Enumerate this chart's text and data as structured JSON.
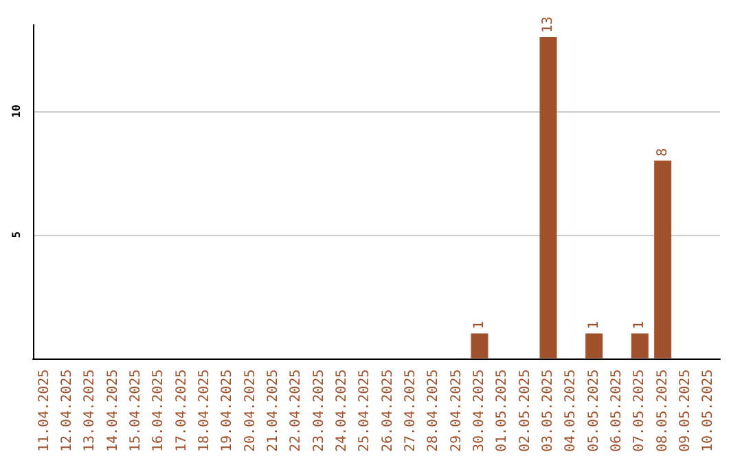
{
  "chart_data": {
    "type": "bar",
    "categories": [
      "11.04.2025",
      "12.04.2025",
      "13.04.2025",
      "14.04.2025",
      "15.04.2025",
      "16.04.2025",
      "17.04.2025",
      "18.04.2025",
      "19.04.2025",
      "20.04.2025",
      "21.04.2025",
      "22.04.2025",
      "23.04.2025",
      "24.04.2025",
      "25.04.2025",
      "26.04.2025",
      "27.04.2025",
      "28.04.2025",
      "29.04.2025",
      "30.04.2025",
      "01.05.2025",
      "02.05.2025",
      "03.05.2025",
      "04.05.2025",
      "05.05.2025",
      "06.05.2025",
      "07.05.2025",
      "08.05.2025",
      "09.05.2025",
      "10.05.2025"
    ],
    "values": [
      0,
      0,
      0,
      0,
      0,
      0,
      0,
      0,
      0,
      0,
      0,
      0,
      0,
      0,
      0,
      0,
      0,
      0,
      0,
      1,
      0,
      0,
      13,
      0,
      1,
      0,
      1,
      8,
      0,
      0
    ],
    "value_labels": [
      null,
      null,
      null,
      null,
      null,
      null,
      null,
      null,
      null,
      null,
      null,
      null,
      null,
      null,
      null,
      null,
      null,
      null,
      null,
      "1",
      null,
      null,
      "13",
      null,
      "1",
      null,
      "1",
      "8",
      null,
      null
    ],
    "color": "#a0522d",
    "ylim": [
      0,
      13.5
    ],
    "yticks": [
      5,
      10
    ],
    "grid": "y"
  }
}
